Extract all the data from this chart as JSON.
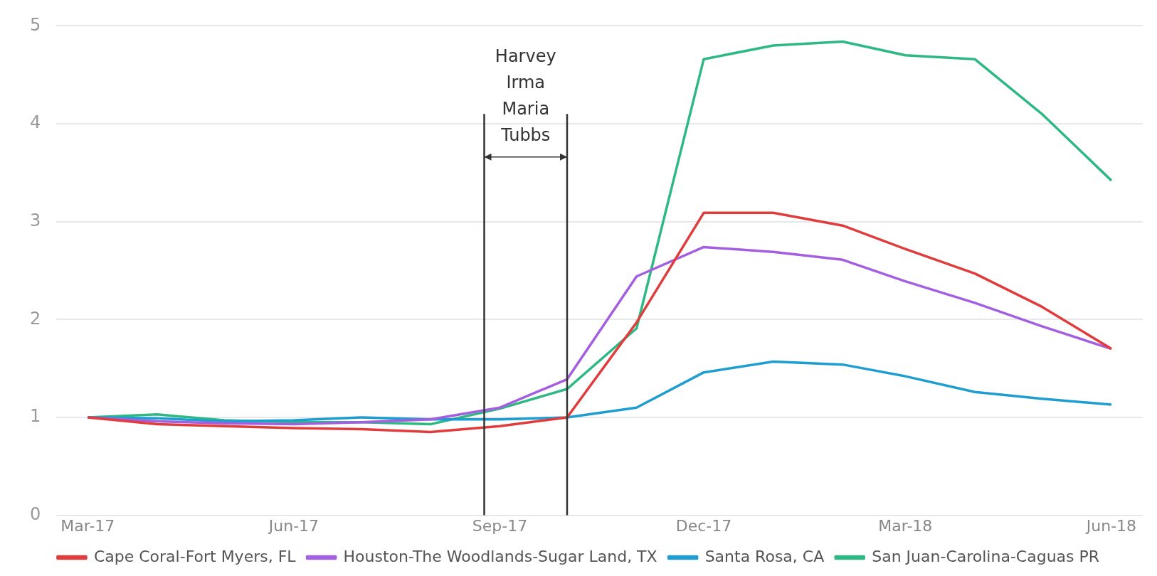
{
  "chart_data": {
    "type": "line",
    "x": [
      "2017-03",
      "2017-04",
      "2017-05",
      "2017-06",
      "2017-07",
      "2017-08",
      "2017-09",
      "2017-10",
      "2017-11",
      "2017-12",
      "2018-01",
      "2018-02",
      "2018-03",
      "2018-04",
      "2018-05",
      "2018-06"
    ],
    "series": [
      {
        "name": "Cape Coral-Fort Myers, FL",
        "color": "#e03c3c",
        "values": [
          1.0,
          0.93,
          0.91,
          0.89,
          0.88,
          0.85,
          0.91,
          1.0,
          1.97,
          3.09,
          3.09,
          2.96,
          2.72,
          2.47,
          2.13,
          1.7
        ]
      },
      {
        "name": "Houston-The Woodlands-Sugar Land, TX",
        "color": "#a45ee0",
        "values": [
          1.0,
          0.96,
          0.94,
          0.93,
          0.95,
          0.98,
          1.1,
          1.39,
          2.44,
          2.74,
          2.69,
          2.61,
          2.39,
          2.17,
          1.93,
          1.7
        ]
      },
      {
        "name": "Santa Rosa, CA",
        "color": "#1e9ed0",
        "values": [
          1.0,
          0.99,
          0.96,
          0.97,
          1.0,
          0.98,
          0.98,
          1.0,
          1.1,
          1.46,
          1.57,
          1.54,
          1.42,
          1.26,
          1.19,
          1.13
        ]
      },
      {
        "name": "San Juan-Carolina-Caguas PR",
        "color": "#2eb884",
        "values": [
          1.0,
          1.03,
          0.97,
          0.95,
          0.95,
          0.93,
          1.09,
          1.29,
          1.91,
          4.66,
          4.8,
          4.84,
          4.7,
          4.66,
          4.1,
          3.42
        ]
      }
    ],
    "xlim": [
      "2017-02-15",
      "2018-06-15"
    ],
    "xticks": [
      {
        "value": "2017-03",
        "label": "Mar-17"
      },
      {
        "value": "2017-06",
        "label": "Jun-17"
      },
      {
        "value": "2017-09",
        "label": "Sep-17"
      },
      {
        "value": "2017-12",
        "label": "Dec-17"
      },
      {
        "value": "2018-03",
        "label": "Mar-18"
      },
      {
        "value": "2018-06",
        "label": "Jun-18"
      }
    ],
    "ylim": [
      0,
      5
    ],
    "yticks": [
      0,
      1,
      2,
      3,
      4,
      5
    ],
    "grid": "y",
    "legend": "bottom",
    "marker": "none",
    "line_style": "solid",
    "ref_lines": [
      {
        "axis": "x",
        "value": "2017-08-25",
        "color": "#333333"
      },
      {
        "axis": "x",
        "value": "2017-10-01",
        "color": "#333333"
      }
    ],
    "annotations": [
      "Harvey\nIrma\nMaria\nTubbs"
    ]
  }
}
